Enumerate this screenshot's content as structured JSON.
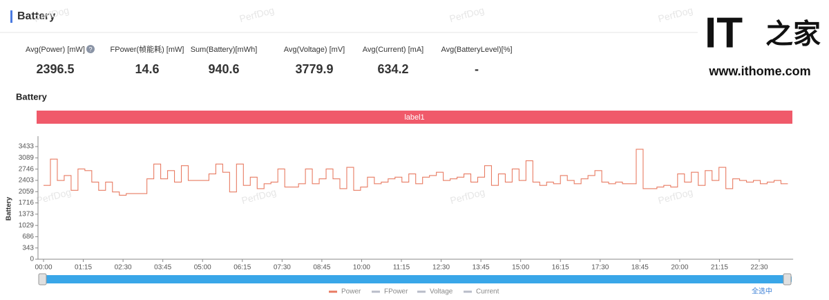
{
  "header": {
    "title": "Battery"
  },
  "stats": [
    {
      "label": "Avg(Power) [mW]",
      "value": 2396.5
    },
    {
      "label": "FPower(帧能耗) [mW]",
      "value": 14.6
    },
    {
      "label": "Sum(Battery)[mWh]",
      "value": 940.6
    },
    {
      "label": "Avg(Voltage) [mV]",
      "value": 3779.9
    },
    {
      "label": "Avg(Current) [mA]",
      "value": 634.2
    },
    {
      "label": "Avg(BatteryLevel)[%]",
      "value": "-"
    }
  ],
  "watermark": "PerfDog",
  "logo": {
    "mark": "IT",
    "name": "之家",
    "url": "www.ithome.com"
  },
  "select_all": "全选中",
  "chart_data": {
    "type": "line",
    "title": "Battery",
    "band_label": "label1",
    "y_label": "Battery",
    "step": true,
    "xlim": [
      0,
      1414
    ],
    "ylim": [
      0,
      3750
    ],
    "xticks": [
      {
        "value": 0,
        "label": "00:00"
      },
      {
        "value": 75,
        "label": "01:15"
      },
      {
        "value": 150,
        "label": "02:30"
      },
      {
        "value": 225,
        "label": "03:45"
      },
      {
        "value": 300,
        "label": "05:00"
      },
      {
        "value": 375,
        "label": "06:15"
      },
      {
        "value": 450,
        "label": "07:30"
      },
      {
        "value": 525,
        "label": "08:45"
      },
      {
        "value": 600,
        "label": "10:00"
      },
      {
        "value": 675,
        "label": "11:15"
      },
      {
        "value": 750,
        "label": "12:30"
      },
      {
        "value": 825,
        "label": "13:45"
      },
      {
        "value": 900,
        "label": "15:00"
      },
      {
        "value": 975,
        "label": "16:15"
      },
      {
        "value": 1050,
        "label": "17:30"
      },
      {
        "value": 1125,
        "label": "18:45"
      },
      {
        "value": 1200,
        "label": "20:00"
      },
      {
        "value": 1275,
        "label": "21:15"
      },
      {
        "value": 1350,
        "label": "22:30"
      }
    ],
    "yticks": [
      0,
      343,
      686,
      1029,
      1373,
      1716,
      2059,
      2403,
      2746,
      3089,
      3433
    ],
    "x": [
      0,
      13,
      26,
      39,
      52,
      65,
      78,
      91,
      104,
      117,
      130,
      143,
      156,
      169,
      182,
      195,
      208,
      221,
      234,
      247,
      260,
      273,
      286,
      299,
      312,
      325,
      338,
      351,
      364,
      377,
      390,
      403,
      416,
      429,
      442,
      455,
      468,
      481,
      494,
      507,
      520,
      533,
      546,
      559,
      572,
      585,
      598,
      611,
      624,
      637,
      650,
      663,
      676,
      689,
      702,
      715,
      728,
      741,
      754,
      767,
      780,
      793,
      806,
      819,
      832,
      845,
      858,
      871,
      884,
      897,
      910,
      923,
      936,
      949,
      962,
      975,
      988,
      1001,
      1014,
      1027,
      1040,
      1053,
      1066,
      1079,
      1092,
      1105,
      1118,
      1131,
      1144,
      1157,
      1170,
      1183,
      1196,
      1209,
      1222,
      1235,
      1248,
      1261,
      1274,
      1287,
      1300,
      1313,
      1326,
      1339,
      1352,
      1365,
      1378,
      1391,
      1404
    ],
    "series": [
      {
        "name": "Power",
        "color": "#e87b62",
        "values": [
          2250,
          3050,
          2400,
          2550,
          2100,
          2750,
          2700,
          2350,
          2100,
          2350,
          2050,
          1950,
          2000,
          2000,
          2000,
          2450,
          2900,
          2450,
          2700,
          2350,
          2850,
          2400,
          2400,
          2400,
          2600,
          2900,
          2650,
          2050,
          2900,
          2250,
          2500,
          2150,
          2300,
          2350,
          2750,
          2200,
          2200,
          2300,
          2750,
          2300,
          2450,
          2750,
          2450,
          2150,
          2800,
          2100,
          2200,
          2500,
          2300,
          2350,
          2450,
          2500,
          2350,
          2600,
          2300,
          2500,
          2550,
          2650,
          2400,
          2450,
          2500,
          2600,
          2350,
          2500,
          2850,
          2250,
          2600,
          2350,
          2750,
          2400,
          3000,
          2350,
          2250,
          2350,
          2300,
          2550,
          2400,
          2300,
          2450,
          2550,
          2700,
          2350,
          2300,
          2350,
          2300,
          2300,
          3350,
          2150,
          2150,
          2200,
          2250,
          2200,
          2600,
          2350,
          2650,
          2250,
          2700,
          2400,
          2800,
          2150,
          2450,
          2400,
          2350,
          2400,
          2300,
          2350,
          2400,
          2300,
          2300
        ]
      }
    ],
    "legend_items": [
      {
        "name": "Power",
        "color": "#e87b62"
      },
      {
        "name": "FPower",
        "color": "#b8bcc8"
      },
      {
        "name": "Voltage",
        "color": "#b8bcc8"
      },
      {
        "name": "Current",
        "color": "#b8bcc8"
      }
    ]
  }
}
